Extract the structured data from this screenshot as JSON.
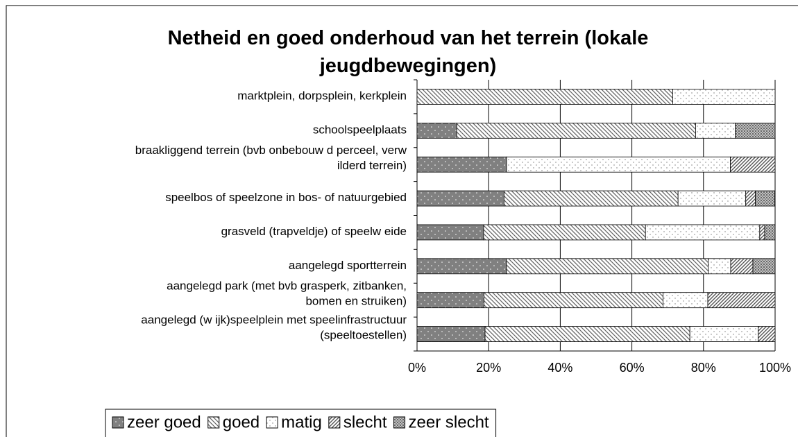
{
  "chart_data": {
    "type": "bar",
    "orientation": "horizontal",
    "stacked": true,
    "title": "Netheid en goed onderhoud van het terrein (lokale jeugdbewegingen)",
    "categories": [
      "marktplein, dorpsplein, kerkplein",
      "schoolspeelplaats",
      "braakliggend terrein (bvb onbebouw d perceel, verw ilderd terrein)",
      "speelbos of speelzone in bos- of natuurgebied",
      "grasveld (trapveldje) of speelw eide",
      "aangelegd sportterrein",
      "aangelegd park (met bvb grasperk, zitbanken, bomen en struiken)",
      "aangelegd (w ijk)speelplein met speelinfrastructuur (speeltoestellen)"
    ],
    "series": [
      {
        "name": "zeer goed",
        "color": "#808080",
        "values": [
          0,
          11.1,
          25,
          24.3,
          18.6,
          25,
          18.7,
          19
        ]
      },
      {
        "name": "goed",
        "color": "#ffffff",
        "values": [
          71.4,
          66.7,
          0,
          48.6,
          45.2,
          56.3,
          50,
          57.2
        ]
      },
      {
        "name": "matig",
        "color": "#ffffff",
        "values": [
          28.6,
          11.1,
          62.5,
          18.9,
          31.9,
          6.3,
          12.5,
          19.1
        ]
      },
      {
        "name": "slecht",
        "color": "#ffffff",
        "values": [
          0,
          0,
          12.5,
          2.7,
          1.4,
          6.2,
          18.8,
          4.7
        ]
      },
      {
        "name": "zeer slecht",
        "color": "#c0c0c0",
        "values": [
          0,
          11.1,
          0,
          5.4,
          2.9,
          6.2,
          0,
          0
        ]
      }
    ],
    "xlim": [
      0,
      100
    ],
    "xticks": [
      {
        "value": 0,
        "label": "0%"
      },
      {
        "value": 20,
        "label": "20%"
      },
      {
        "value": 40,
        "label": "40%"
      },
      {
        "value": 60,
        "label": "60%"
      },
      {
        "value": 80,
        "label": "80%"
      },
      {
        "value": 100,
        "label": "100%"
      }
    ],
    "grid": true,
    "legend": "bottom"
  }
}
